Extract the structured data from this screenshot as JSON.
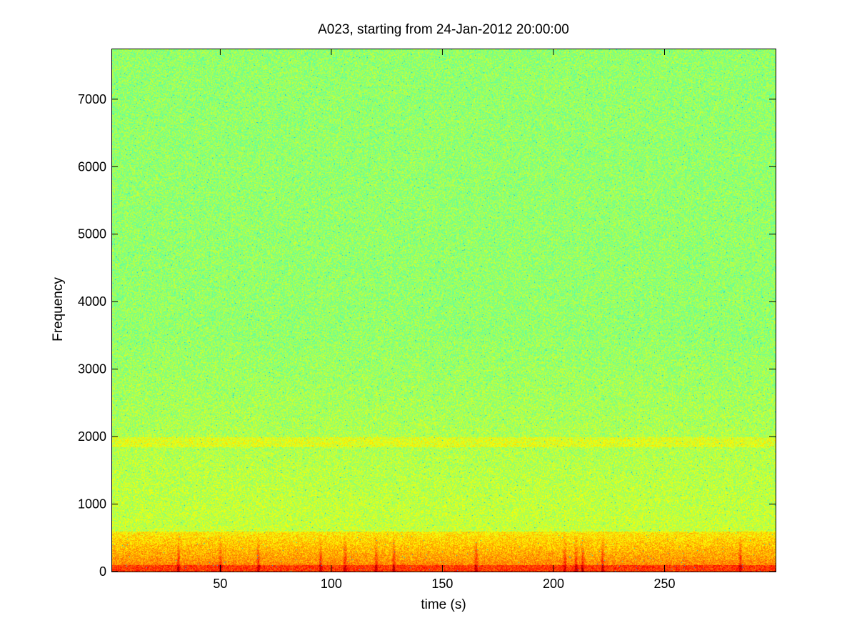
{
  "chart_data": {
    "type": "heatmap",
    "title": "A023, starting from 24-Jan-2012 20:00:00",
    "xlabel": "time (s)",
    "ylabel": "Frequency",
    "xlim": [
      1,
      300
    ],
    "ylim": [
      0,
      7750
    ],
    "x_ticks": [
      50,
      100,
      150,
      200,
      250
    ],
    "y_ticks": [
      0,
      1000,
      2000,
      3000,
      4000,
      5000,
      6000,
      7000
    ],
    "colormap": "jet",
    "background_level": "green-cyan",
    "bands": [
      {
        "frequency_range": [
          0,
          100
        ],
        "intensity": "red"
      },
      {
        "frequency_range": [
          100,
          600
        ],
        "intensity": "yellow"
      },
      {
        "frequency_range": [
          1850,
          2000
        ],
        "intensity": "yellow"
      }
    ],
    "transient_peaks_s": [
      31,
      50,
      67,
      95,
      106,
      120,
      128,
      165,
      205,
      210,
      213,
      222,
      284
    ]
  },
  "colors": {
    "background": "#ffffff",
    "axis": "#000000",
    "jet_green": "#68f082",
    "jet_yellow": "#f0f020",
    "jet_red": "#c81e10"
  }
}
